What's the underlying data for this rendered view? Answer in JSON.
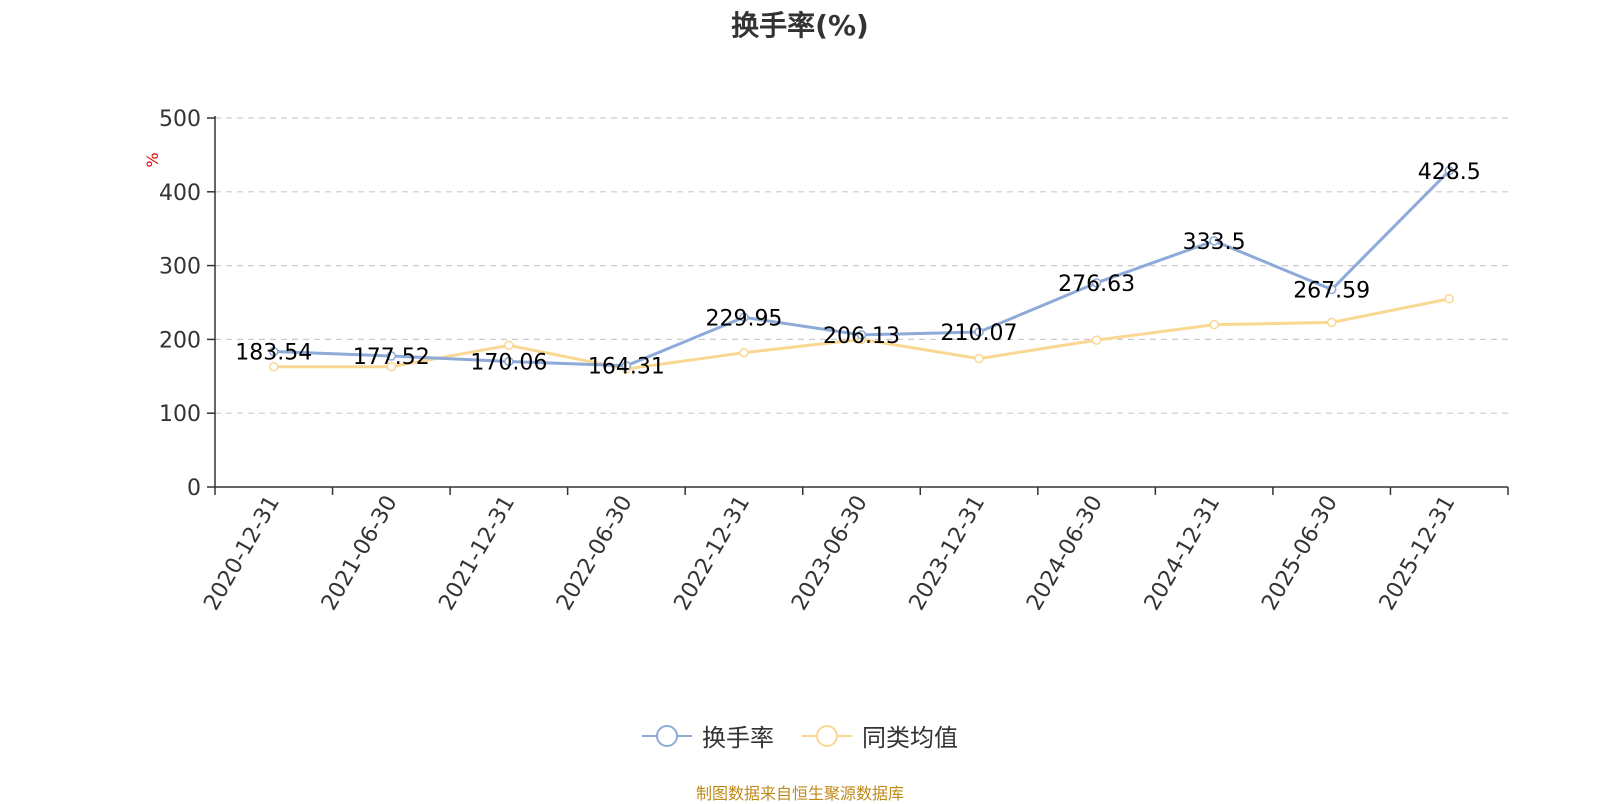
{
  "colors": {
    "series1": "#8eaad8",
    "series2": "#fad792",
    "grid": "#cccccc",
    "axis": "#333333"
  },
  "footer": {
    "source": "制图数据来自恒生聚源数据库"
  },
  "chart_data": {
    "type": "line",
    "title": "换手率(%)",
    "ylabel": "%",
    "xlabel": "",
    "ylim": [
      0,
      500
    ],
    "yticks": [
      0,
      100,
      200,
      300,
      400,
      500
    ],
    "grid": true,
    "legend_position": "bottom-center",
    "categories": [
      "2020-12-31",
      "2021-06-30",
      "2021-12-31",
      "2022-06-30",
      "2022-12-31",
      "2023-06-30",
      "2023-12-31",
      "2024-06-30",
      "2024-12-31",
      "2025-06-30",
      "2025-12-31"
    ],
    "series": [
      {
        "name": "换手率",
        "values": [
          183.54,
          177.52,
          170.06,
          164.31,
          229.95,
          206.13,
          210.07,
          276.63,
          333.5,
          267.59,
          428.5
        ],
        "labels": [
          "183.54",
          "177.52",
          "170.06",
          "164.31",
          "229.95",
          "206.13",
          "210.07",
          "276.63",
          "333.5",
          "267.59",
          "428.5"
        ]
      },
      {
        "name": "同类均值",
        "values": [
          163,
          163,
          192,
          160,
          182,
          200,
          174,
          199,
          220,
          223,
          255
        ]
      }
    ]
  }
}
